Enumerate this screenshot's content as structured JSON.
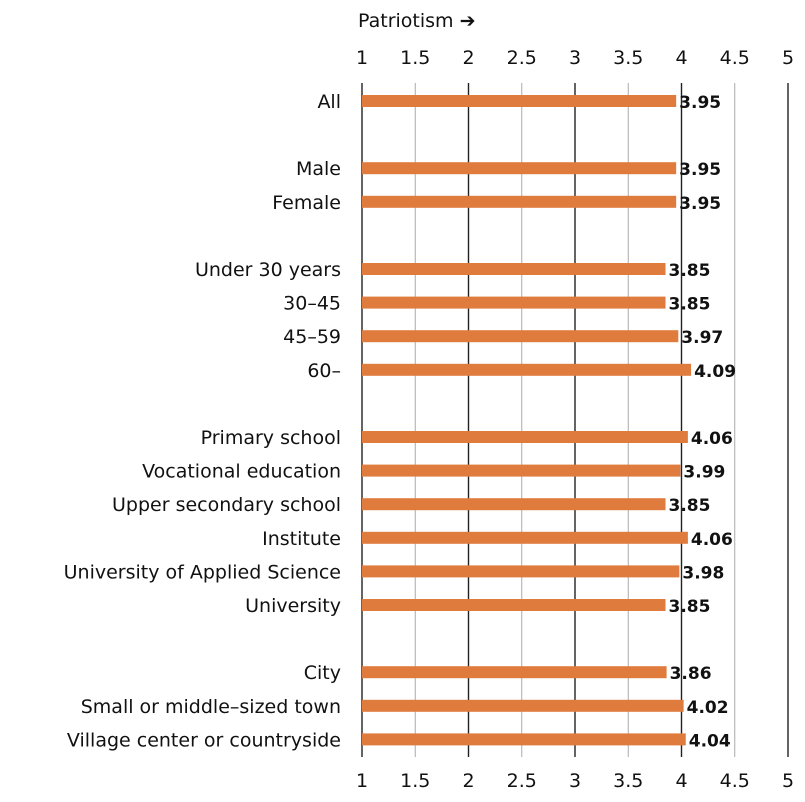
{
  "chart_data": {
    "type": "bar",
    "orientation": "horizontal",
    "title": "Patriotism",
    "title_arrow": "➔",
    "xlim": [
      1,
      5
    ],
    "ticks": [
      "1",
      "1.5",
      "2",
      "2.5",
      "3",
      "3.5",
      "4",
      "4.5",
      "5"
    ],
    "grid": true,
    "bar_color": "#E07B3E",
    "groups": [
      {
        "categories": [
          "All"
        ],
        "values": [
          3.95
        ],
        "labels": [
          "3.95"
        ]
      },
      {
        "categories": [
          "Male",
          "Female"
        ],
        "values": [
          3.95,
          3.95
        ],
        "labels": [
          "3.95",
          "3.95"
        ]
      },
      {
        "categories": [
          "Under 30 years",
          "30–45",
          "45–59",
          "60–"
        ],
        "values": [
          3.85,
          3.85,
          3.97,
          4.09
        ],
        "labels": [
          "3.85",
          "3.85",
          "3.97",
          "4.09"
        ]
      },
      {
        "categories": [
          "Primary school",
          "Vocational education",
          "Upper secondary school",
          "Institute",
          "University of Applied Science",
          "University"
        ],
        "values": [
          4.06,
          3.99,
          3.85,
          4.06,
          3.98,
          3.85
        ],
        "labels": [
          "4.06",
          "3.99",
          "3.85",
          "4.06",
          "3.98",
          "3.85"
        ]
      },
      {
        "categories": [
          "City",
          "Small or middle–sized town",
          "Village center or countryside"
        ],
        "values": [
          3.86,
          4.02,
          4.04
        ],
        "labels": [
          "3.86",
          "4.02",
          "4.04"
        ]
      }
    ]
  }
}
